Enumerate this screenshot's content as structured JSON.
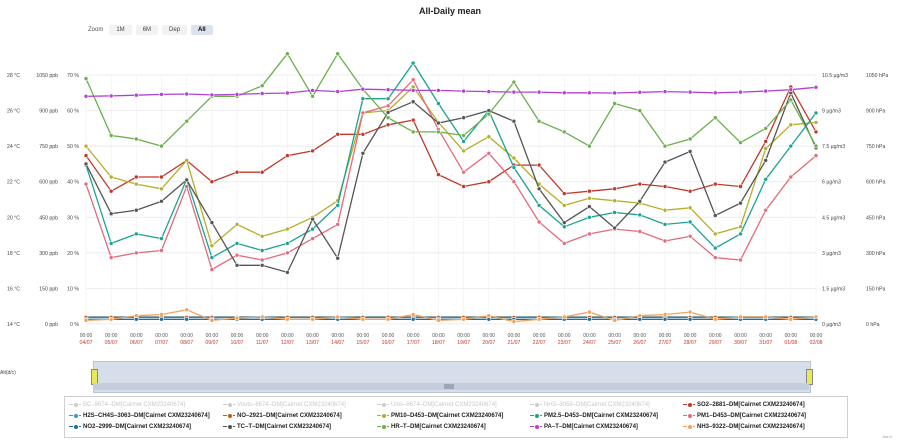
{
  "ui": {
    "zoom_label": "Zoom",
    "zoom_buttons": [
      {
        "label": "1M",
        "active": false
      },
      {
        "label": "6M",
        "active": false
      },
      {
        "label": "Dep",
        "active": false
      },
      {
        "label": "All",
        "active": true
      }
    ],
    "navigator_label": "Alt(d/c)",
    "navigator_range": "0",
    "credit": "Joe.fr"
  },
  "chart_data": {
    "type": "line",
    "title": "All-Daily mean",
    "x": [
      "04/07",
      "05/07",
      "06/07",
      "07/07",
      "08/07",
      "09/07",
      "10/07",
      "11/07",
      "12/07",
      "13/07",
      "14/07",
      "15/07",
      "16/07",
      "17/07",
      "18/07",
      "19/07",
      "20/07",
      "21/07",
      "22/07",
      "23/07",
      "24/07",
      "25/07",
      "26/07",
      "27/07",
      "28/07",
      "29/07",
      "30/07",
      "31/07",
      "01/08",
      "02/08"
    ],
    "x_time_labels": [
      "00:00",
      "00:00",
      "00:00",
      "00:00",
      "00:00",
      "00:00",
      "00:00",
      "00:00",
      "00:00",
      "00:00",
      "00:00",
      "00:00",
      "00:00",
      "00:00",
      "00:00",
      "00:00",
      "00:00",
      "00:00",
      "00:00",
      "00:00",
      "00:00",
      "00:00",
      "00:00",
      "00:00",
      "00:00",
      "00:00",
      "00:00",
      "00:00",
      "00:00",
      "00:00"
    ],
    "grid": true,
    "legend_position": "bottom",
    "axes": [
      {
        "id": "temp",
        "side": "left",
        "ticks": [
          "14 °C",
          "16 °C",
          "18 °C",
          "20 °C",
          "22 °C",
          "24 °C",
          "26 °C",
          "28 °C"
        ],
        "range": [
          14,
          28
        ]
      },
      {
        "id": "ppb",
        "side": "left",
        "ticks": [
          "0 ppb",
          "150 ppb",
          "300 ppb",
          "450 ppb",
          "600 ppb",
          "750 ppb",
          "900 ppb",
          "1050 ppb"
        ],
        "range": [
          0,
          1050
        ]
      },
      {
        "id": "pct",
        "side": "left",
        "ticks": [
          "0 %",
          "10 %",
          "20 %",
          "30 %",
          "40 %",
          "50 %",
          "60 %",
          "70 %"
        ],
        "range": [
          0,
          70
        ]
      },
      {
        "id": "ugm3",
        "side": "right",
        "ticks": [
          "0 µg/m3",
          "1.5 µg/m3",
          "3 µg/m3",
          "4.5 µg/m3",
          "6 µg/m3",
          "7.5 µg/m3",
          "9 µg/m3",
          "10.5 µg/m3"
        ],
        "range": [
          0,
          10.5
        ]
      },
      {
        "id": "hpa",
        "side": "right",
        "ticks": [
          "0 hPa",
          "150 hPa",
          "300 hPa",
          "450 hPa",
          "600 hPa",
          "750 hPa",
          "900 hPa",
          "1050 hPa"
        ],
        "range": [
          0,
          1050
        ]
      }
    ],
    "series": [
      {
        "name": "BC–9674–DM[Cairnet CXM23240674]",
        "color": "#b0b0b0",
        "visible": false
      },
      {
        "name": "Vouts–8674–DM[Cairnet CXM23240674]",
        "color": "#b0b0b0",
        "visible": false
      },
      {
        "name": "Uins–8674–DM[Cairnet CXM23240674]",
        "color": "#b0b0b0",
        "visible": false
      },
      {
        "name": "NH3–3058–DM[Cairnet CXM23240674]",
        "color": "#b0b0b0",
        "visible": false
      },
      {
        "name": "SO2–2881–DM[Cairnet CXM23240674]",
        "color": "#c0392b",
        "visible": true,
        "axis": "ppb",
        "values": [
          710,
          560,
          620,
          620,
          690,
          600,
          640,
          640,
          710,
          730,
          800,
          800,
          840,
          860,
          630,
          580,
          600,
          670,
          670,
          550,
          560,
          570,
          590,
          580,
          560,
          590,
          580,
          770,
          1000,
          810
        ]
      },
      {
        "name": "H2S–CH4S–3063–DM[Cairnet CXM23240674]",
        "color": "#2a9fd6",
        "visible": true,
        "axis": "ppb",
        "values": [
          30,
          30,
          30,
          30,
          30,
          30,
          30,
          30,
          30,
          30,
          30,
          30,
          30,
          30,
          30,
          30,
          30,
          30,
          30,
          30,
          30,
          30,
          30,
          30,
          30,
          30,
          30,
          30,
          30,
          30
        ]
      },
      {
        "name": "NO–2921–DM[Cairnet CXM23240674]",
        "color": "#d35400",
        "visible": true,
        "axis": "ppb",
        "values": [
          28,
          28,
          28,
          28,
          28,
          28,
          28,
          28,
          28,
          28,
          28,
          28,
          28,
          28,
          28,
          28,
          28,
          28,
          28,
          28,
          28,
          28,
          28,
          28,
          28,
          28,
          28,
          28,
          28,
          28
        ]
      },
      {
        "name": "PM10–D453–DM[Cairnet CXM23240674]",
        "color": "#b5ae2a",
        "visible": true,
        "axis": "ugm3",
        "values": [
          7.5,
          6.2,
          5.9,
          5.7,
          6.9,
          3.3,
          4.2,
          3.7,
          4.0,
          4.5,
          5.2,
          8.9,
          9.0,
          10.0,
          8.5,
          7.3,
          7.9,
          7.0,
          5.9,
          5.0,
          5.3,
          5.2,
          5.1,
          4.8,
          4.9,
          3.8,
          4.1,
          7.4,
          8.4,
          8.5
        ]
      },
      {
        "name": "PM2.5–D453–DM[Cairnet CXM23240674]",
        "color": "#1aa394",
        "visible": true,
        "axis": "ugm3",
        "values": [
          6.7,
          3.4,
          3.8,
          3.6,
          6.1,
          2.8,
          3.4,
          3.1,
          3.4,
          4.0,
          5.0,
          9.5,
          9.5,
          11.0,
          9.3,
          7.7,
          9.0,
          6.6,
          5.0,
          4.1,
          4.5,
          4.7,
          4.6,
          4.2,
          4.3,
          3.2,
          3.8,
          6.1,
          7.5,
          8.9
        ]
      },
      {
        "name": "PM1–D453–DM[Cairnet CXM23240674]",
        "color": "#e36b7a",
        "visible": true,
        "axis": "ugm3",
        "values": [
          5.9,
          2.8,
          3.0,
          3.1,
          5.8,
          2.3,
          2.9,
          2.7,
          3.0,
          3.6,
          4.2,
          8.9,
          9.2,
          10.3,
          8.2,
          6.4,
          7.2,
          6.0,
          4.3,
          3.4,
          3.8,
          4.0,
          3.9,
          3.5,
          3.7,
          2.8,
          2.7,
          4.8,
          6.2,
          7.1
        ]
      },
      {
        "name": "NO2–2999–DM[Cairnet CXM23240674]",
        "color": "#1f6f9e",
        "visible": true,
        "axis": "ppb",
        "values": [
          20,
          20,
          20,
          20,
          20,
          20,
          20,
          20,
          20,
          20,
          20,
          20,
          20,
          20,
          20,
          20,
          20,
          20,
          20,
          20,
          20,
          20,
          20,
          20,
          20,
          20,
          20,
          20,
          20,
          20
        ]
      },
      {
        "name": "TC–T–DM[Cairnet CXM23240674]",
        "color": "#555555",
        "visible": true,
        "axis": "temp",
        "values": [
          23.0,
          20.2,
          20.4,
          20.9,
          22.1,
          19.7,
          17.3,
          17.3,
          16.9,
          19.9,
          17.7,
          23.6,
          25.9,
          26.5,
          25.3,
          25.6,
          26.0,
          25.4,
          21.6,
          19.7,
          20.6,
          19.4,
          20.9,
          23.1,
          23.7,
          20.1,
          20.8,
          23.2,
          27.0,
          23.9
        ]
      },
      {
        "name": "HR–T–DM[Cairnet CXM23240674]",
        "color": "#6ab04c",
        "visible": true,
        "axis": "pct",
        "values": [
          69,
          53,
          52,
          50,
          57,
          64,
          64,
          67,
          76,
          64,
          76,
          66,
          58,
          54,
          54,
          53,
          59,
          68,
          57,
          54,
          50,
          62,
          60,
          50,
          52,
          58,
          51,
          55,
          63,
          50
        ]
      },
      {
        "name": "PA–T–DM[Cairnet CXM23240674]",
        "color": "#b142d0",
        "visible": true,
        "axis": "hpa",
        "values": [
          960,
          962,
          965,
          968,
          970,
          966,
          968,
          972,
          974,
          985,
          980,
          990,
          988,
          985,
          985,
          982,
          980,
          978,
          978,
          975,
          975,
          974,
          977,
          980,
          978,
          975,
          978,
          982,
          988,
          998
        ]
      },
      {
        "name": "NH3–9322–DM[Cairnet CXM23240674]",
        "color": "#f0a35e",
        "visible": true,
        "axis": "ugm3",
        "values": [
          0.15,
          0.2,
          0.35,
          0.4,
          0.6,
          0.15,
          0.25,
          0.3,
          0.2,
          0.2,
          0.3,
          0.2,
          0.2,
          0.4,
          0.15,
          0.2,
          0.35,
          0.1,
          0.2,
          0.3,
          0.5,
          0.15,
          0.35,
          0.4,
          0.5,
          0.2,
          0.3,
          0.3,
          0.2,
          0.3
        ]
      }
    ]
  }
}
